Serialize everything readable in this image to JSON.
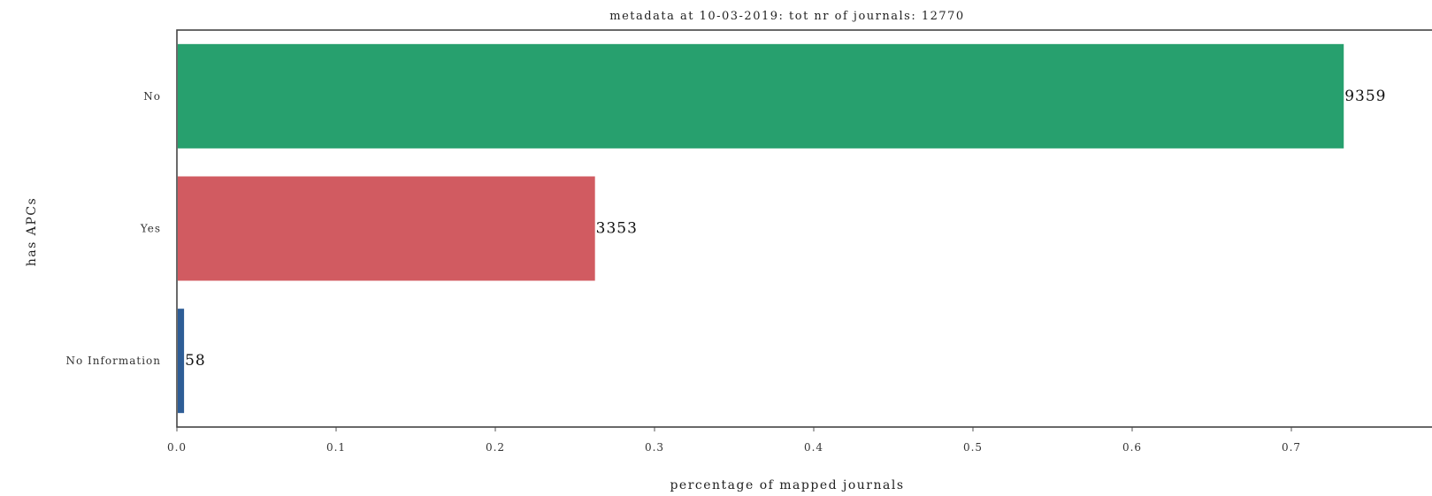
{
  "chart_data": {
    "type": "bar",
    "orientation": "horizontal",
    "title": "metadata at 10-03-2019: tot nr of journals: 12770",
    "xlabel": "percentage of mapped journals",
    "ylabel": "has APCs",
    "categories": [
      "No",
      "Yes",
      "No Information"
    ],
    "values": [
      0.7329,
      0.2626,
      0.0045
    ],
    "data_labels": [
      "9359",
      "3353",
      "58"
    ],
    "colors": [
      "#27a06e",
      "#d15b61",
      "#2e5d96"
    ],
    "xlim": [
      0,
      0.77
    ],
    "xticks": [
      "0.0",
      "0.1",
      "0.2",
      "0.3",
      "0.4",
      "0.5",
      "0.6",
      "0.7"
    ],
    "grid": false,
    "legend": "none"
  }
}
